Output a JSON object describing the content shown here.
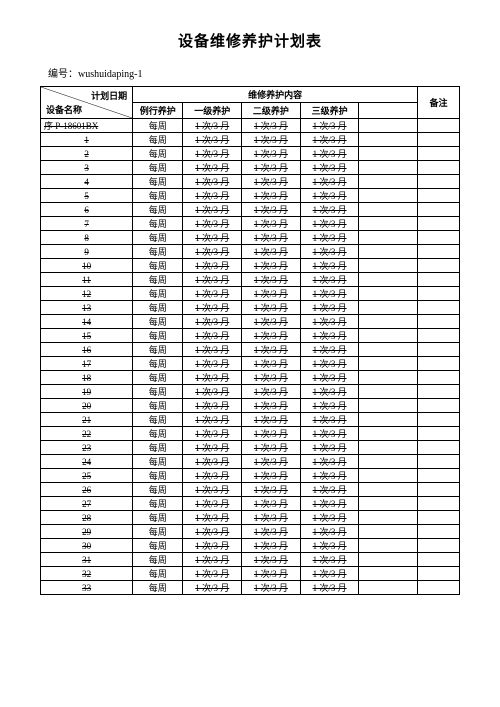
{
  "title": "设备维修养护计划表",
  "doc_no_label": "编号：",
  "doc_no_value": "wushuidaping-1",
  "headers": {
    "diag_top": "计划日期",
    "diag_bottom": "设备名称",
    "maint_content": "维修养护内容",
    "remarks": "备注",
    "col2": "例行养护",
    "col3": "一级养护",
    "col4": "二级养护",
    "col5": "三级养护"
  },
  "row0_name": "序 P-18601BX",
  "rows_routine": "每周",
  "rows_freq": "1 次/3 月",
  "row_count": 34
}
